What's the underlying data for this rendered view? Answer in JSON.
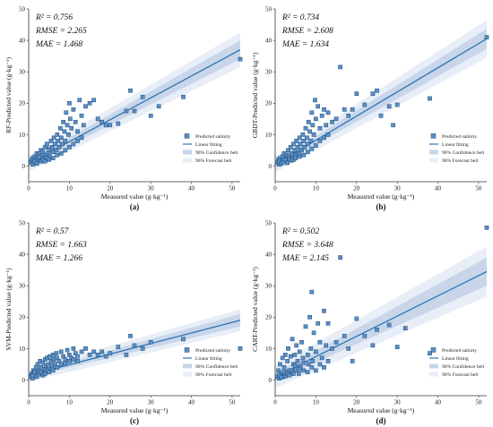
{
  "chart_data": [
    {
      "type": "scatter",
      "panel_label": "(a)",
      "xlabel": "Measured value (g·kg⁻¹)",
      "ylabel": "RF-Predicted value (g·kg⁻¹)",
      "xlim": [
        0,
        52
      ],
      "ylim": [
        -5,
        50
      ],
      "xticks": [
        0,
        10,
        20,
        30,
        40,
        50
      ],
      "yticks": [
        0,
        10,
        20,
        30,
        40,
        50
      ],
      "stats": [
        "R² = 0.756",
        "RMSE = 2.265",
        "MAE = 1.468"
      ],
      "fit": {
        "x": [
          0,
          52
        ],
        "y": [
          0.8,
          37.0
        ]
      },
      "confidence_halfwidth": [
        0.9,
        3.0
      ],
      "forecast_halfwidth": [
        2.5,
        5.5
      ],
      "legend": [
        "Predicted salinity",
        "Linear fitting",
        "90% Confidence belt",
        "90% Forecast belt"
      ],
      "points": [
        [
          0.5,
          1.2
        ],
        [
          0.8,
          2.0
        ],
        [
          1.0,
          2.5
        ],
        [
          1.2,
          1.0
        ],
        [
          1.5,
          3.0
        ],
        [
          1.8,
          2.2
        ],
        [
          2.0,
          4.0
        ],
        [
          2.2,
          1.8
        ],
        [
          2.5,
          3.5
        ],
        [
          2.8,
          2.0
        ],
        [
          3.0,
          5.0
        ],
        [
          3.2,
          3.0
        ],
        [
          3.5,
          4.5
        ],
        [
          3.8,
          2.5
        ],
        [
          4.0,
          6.0
        ],
        [
          4.2,
          3.5
        ],
        [
          4.5,
          7.0
        ],
        [
          4.8,
          4.0
        ],
        [
          5.0,
          5.5
        ],
        [
          5.2,
          3.0
        ],
        [
          5.5,
          8.0
        ],
        [
          5.8,
          6.0
        ],
        [
          6.0,
          4.5
        ],
        [
          6.2,
          9.0
        ],
        [
          6.5,
          7.0
        ],
        [
          6.8,
          5.0
        ],
        [
          7.0,
          10.0
        ],
        [
          7.2,
          8.0
        ],
        [
          7.5,
          6.0
        ],
        [
          7.8,
          12.0
        ],
        [
          8.0,
          9.0
        ],
        [
          8.2,
          7.0
        ],
        [
          8.5,
          14.0
        ],
        [
          8.8,
          11.0
        ],
        [
          9.0,
          8.0
        ],
        [
          9.2,
          17.0
        ],
        [
          9.5,
          13.0
        ],
        [
          9.8,
          10.0
        ],
        [
          10.0,
          20.0
        ],
        [
          10.2,
          15.0
        ],
        [
          10.5,
          12.0
        ],
        [
          11.0,
          18.0
        ],
        [
          11.5,
          14.0
        ],
        [
          12.0,
          11.0
        ],
        [
          12.5,
          21.0
        ],
        [
          13.0,
          16.0
        ],
        [
          13.5,
          13.0
        ],
        [
          14.0,
          19.0
        ],
        [
          15.0,
          20.0
        ],
        [
          16.0,
          21.0
        ],
        [
          17.0,
          15.0
        ],
        [
          18.0,
          14.0
        ],
        [
          19.0,
          13.0
        ],
        [
          20.0,
          13.0
        ],
        [
          22.0,
          13.5
        ],
        [
          24.0,
          17.5
        ],
        [
          25.0,
          24.0
        ],
        [
          26.0,
          17.5
        ],
        [
          28.0,
          22.0
        ],
        [
          30.0,
          16.0
        ],
        [
          32.0,
          19.0
        ],
        [
          38.0,
          22.0
        ],
        [
          52.0,
          34.0
        ],
        [
          1.0,
          0.5
        ],
        [
          1.5,
          1.5
        ],
        [
          2.0,
          0.8
        ],
        [
          2.5,
          2.8
        ],
        [
          3.0,
          1.5
        ],
        [
          3.5,
          2.0
        ],
        [
          4.0,
          1.5
        ],
        [
          4.5,
          2.5
        ],
        [
          5.0,
          2.0
        ],
        [
          6.0,
          2.5
        ],
        [
          7.0,
          3.5
        ],
        [
          8.0,
          4.0
        ],
        [
          9.0,
          5.0
        ],
        [
          10.0,
          6.0
        ],
        [
          11.0,
          7.0
        ],
        [
          12.0,
          8.0
        ],
        [
          13.0,
          9.0
        ]
      ]
    },
    {
      "type": "scatter",
      "panel_label": "(b)",
      "xlabel": "Measured value (g·kg⁻¹)",
      "ylabel": "GBDT-Predicted value (g·kg⁻¹)",
      "xlim": [
        0,
        52
      ],
      "ylim": [
        -5,
        50
      ],
      "xticks": [
        0,
        10,
        20,
        30,
        40,
        50
      ],
      "yticks": [
        0,
        10,
        20,
        30,
        40,
        50
      ],
      "stats": [
        "R² = 0.734",
        "RMSE = 2.608",
        "MAE = 1.634"
      ],
      "fit": {
        "x": [
          0,
          52
        ],
        "y": [
          0.5,
          40.5
        ]
      },
      "confidence_halfwidth": [
        0.9,
        3.2
      ],
      "forecast_halfwidth": [
        2.5,
        6.0
      ],
      "legend": [
        "Predicted salinity",
        "Linear fitting",
        "90% Confidence belt",
        "90% Forecast belt"
      ],
      "points": [
        [
          0.5,
          1.0
        ],
        [
          0.8,
          2.0
        ],
        [
          1.0,
          0.5
        ],
        [
          1.2,
          2.5
        ],
        [
          1.5,
          1.5
        ],
        [
          1.8,
          3.0
        ],
        [
          2.0,
          2.0
        ],
        [
          2.2,
          4.0
        ],
        [
          2.5,
          1.5
        ],
        [
          2.8,
          3.5
        ],
        [
          3.0,
          2.5
        ],
        [
          3.2,
          5.0
        ],
        [
          3.5,
          3.0
        ],
        [
          3.8,
          6.0
        ],
        [
          4.0,
          4.0
        ],
        [
          4.2,
          2.5
        ],
        [
          4.5,
          7.0
        ],
        [
          4.8,
          5.0
        ],
        [
          5.0,
          3.5
        ],
        [
          5.2,
          8.0
        ],
        [
          5.5,
          6.0
        ],
        [
          5.8,
          4.0
        ],
        [
          6.0,
          9.0
        ],
        [
          6.2,
          7.0
        ],
        [
          6.5,
          5.0
        ],
        [
          6.8,
          10.0
        ],
        [
          7.0,
          8.0
        ],
        [
          7.2,
          6.0
        ],
        [
          7.5,
          12.0
        ],
        [
          7.8,
          9.0
        ],
        [
          8.0,
          7.0
        ],
        [
          8.2,
          14.0
        ],
        [
          8.5,
          11.0
        ],
        [
          8.8,
          8.0
        ],
        [
          9.0,
          17.0
        ],
        [
          9.2,
          13.0
        ],
        [
          9.5,
          10.0
        ],
        [
          9.8,
          21.0
        ],
        [
          10.0,
          15.0
        ],
        [
          10.5,
          19.0
        ],
        [
          11.0,
          12.0
        ],
        [
          11.5,
          16.0
        ],
        [
          12.0,
          18.0
        ],
        [
          12.5,
          13.0
        ],
        [
          13.0,
          17.0
        ],
        [
          14.0,
          14.0
        ],
        [
          15.0,
          15.0
        ],
        [
          16.0,
          31.5
        ],
        [
          17.0,
          18.0
        ],
        [
          18.0,
          16.0
        ],
        [
          19.0,
          18.0
        ],
        [
          20.0,
          23.0
        ],
        [
          22.0,
          19.5
        ],
        [
          24.0,
          23.0
        ],
        [
          25.0,
          24.0
        ],
        [
          26.0,
          16.0
        ],
        [
          28.0,
          19.0
        ],
        [
          29.0,
          13.0
        ],
        [
          30.0,
          19.5
        ],
        [
          38.0,
          21.5
        ],
        [
          52.0,
          41.0
        ],
        [
          1.0,
          1.5
        ],
        [
          1.5,
          0.8
        ],
        [
          2.0,
          1.2
        ],
        [
          2.5,
          2.0
        ],
        [
          3.0,
          1.0
        ],
        [
          3.5,
          2.2
        ],
        [
          4.0,
          1.8
        ],
        [
          4.5,
          2.0
        ],
        [
          5.0,
          2.5
        ],
        [
          6.0,
          3.0
        ],
        [
          7.0,
          3.5
        ],
        [
          8.0,
          4.5
        ],
        [
          9.0,
          5.5
        ],
        [
          10.0,
          6.5
        ],
        [
          11.0,
          8.0
        ],
        [
          12.0,
          9.0
        ],
        [
          13.0,
          10.0
        ]
      ]
    },
    {
      "type": "scatter",
      "panel_label": "(c)",
      "xlabel": "Measured value (g·kg⁻¹)",
      "ylabel": "SVM-Predicted value (g·kg⁻¹)",
      "xlim": [
        0,
        52
      ],
      "ylim": [
        -5,
        50
      ],
      "xticks": [
        0,
        10,
        20,
        30,
        40,
        50
      ],
      "yticks": [
        0,
        10,
        20,
        30,
        40,
        50
      ],
      "stats": [
        "R² = 0.57",
        "RMSE = 1.663",
        "MAE = 1.266"
      ],
      "fit": {
        "x": [
          0,
          52
        ],
        "y": [
          1.5,
          19.0
        ]
      },
      "confidence_halfwidth": [
        0.6,
        2.0
      ],
      "forecast_halfwidth": [
        2.0,
        3.5
      ],
      "legend": [
        "Predicted salinity",
        "Linear fitting",
        "90% Confidence belt",
        "90% Forecast belt"
      ],
      "points": [
        [
          0.5,
          1.0
        ],
        [
          0.8,
          2.0
        ],
        [
          1.0,
          0.5
        ],
        [
          1.2,
          3.0
        ],
        [
          1.5,
          1.5
        ],
        [
          1.8,
          4.0
        ],
        [
          2.0,
          2.5
        ],
        [
          2.2,
          5.0
        ],
        [
          2.5,
          3.0
        ],
        [
          2.8,
          6.0
        ],
        [
          3.0,
          4.0
        ],
        [
          3.2,
          2.0
        ],
        [
          3.5,
          5.5
        ],
        [
          3.8,
          3.5
        ],
        [
          4.0,
          6.5
        ],
        [
          4.2,
          4.5
        ],
        [
          4.5,
          7.0
        ],
        [
          4.8,
          5.0
        ],
        [
          5.0,
          3.5
        ],
        [
          5.2,
          7.5
        ],
        [
          5.5,
          6.0
        ],
        [
          5.8,
          4.5
        ],
        [
          6.0,
          8.0
        ],
        [
          6.2,
          6.5
        ],
        [
          6.5,
          5.0
        ],
        [
          6.8,
          8.5
        ],
        [
          7.0,
          7.0
        ],
        [
          7.5,
          6.0
        ],
        [
          8.0,
          9.0
        ],
        [
          8.5,
          7.5
        ],
        [
          9.0,
          6.5
        ],
        [
          9.5,
          9.5
        ],
        [
          10.0,
          8.0
        ],
        [
          10.5,
          7.0
        ],
        [
          11.0,
          10.0
        ],
        [
          11.5,
          8.5
        ],
        [
          12.0,
          7.5
        ],
        [
          13.0,
          9.0
        ],
        [
          14.0,
          10.0
        ],
        [
          15.0,
          8.0
        ],
        [
          16.0,
          9.0
        ],
        [
          17.0,
          8.0
        ],
        [
          18.0,
          9.0
        ],
        [
          19.0,
          7.5
        ],
        [
          20.0,
          8.5
        ],
        [
          22.0,
          10.5
        ],
        [
          24.0,
          8.0
        ],
        [
          25.0,
          14.0
        ],
        [
          26.0,
          11.0
        ],
        [
          28.0,
          10.0
        ],
        [
          30.0,
          12.0
        ],
        [
          38.0,
          13.0
        ],
        [
          52.0,
          10.0
        ],
        [
          1.0,
          1.5
        ],
        [
          1.5,
          2.5
        ],
        [
          2.0,
          1.0
        ],
        [
          2.5,
          1.8
        ],
        [
          3.0,
          2.5
        ],
        [
          3.5,
          1.5
        ],
        [
          4.0,
          2.0
        ],
        [
          4.5,
          3.0
        ],
        [
          5.0,
          2.5
        ],
        [
          6.0,
          3.0
        ],
        [
          7.0,
          4.0
        ],
        [
          8.0,
          5.0
        ],
        [
          9.0,
          5.5
        ],
        [
          10.0,
          6.0
        ],
        [
          11.0,
          6.5
        ],
        [
          12.0,
          6.0
        ]
      ]
    },
    {
      "type": "scatter",
      "panel_label": "(d)",
      "xlabel": "Measured value (g·kg⁻¹)",
      "ylabel": "CART-Predicted value (g·kg⁻¹)",
      "xlim": [
        0,
        52
      ],
      "ylim": [
        -5,
        50
      ],
      "xticks": [
        0,
        10,
        20,
        30,
        40,
        50
      ],
      "yticks": [
        0,
        10,
        20,
        30,
        40,
        50
      ],
      "stats": [
        "R² = 0.502",
        "RMSE = 3.648",
        "MAE = 2.145"
      ],
      "fit": {
        "x": [
          0,
          52
        ],
        "y": [
          1.0,
          34.5
        ]
      },
      "confidence_halfwidth": [
        1.2,
        4.5
      ],
      "forecast_halfwidth": [
        3.5,
        8.0
      ],
      "legend": [
        "Predicted salinity",
        "Linear fitting",
        "90% Confidence belt",
        "90% Forecast belt"
      ],
      "points": [
        [
          0.5,
          1.0
        ],
        [
          0.8,
          3.0
        ],
        [
          1.0,
          0.5
        ],
        [
          1.2,
          5.0
        ],
        [
          1.5,
          2.0
        ],
        [
          1.8,
          7.0
        ],
        [
          2.0,
          1.0
        ],
        [
          2.2,
          4.0
        ],
        [
          2.5,
          8.0
        ],
        [
          2.8,
          2.5
        ],
        [
          3.0,
          6.0
        ],
        [
          3.2,
          10.0
        ],
        [
          3.5,
          3.0
        ],
        [
          3.8,
          7.5
        ],
        [
          4.0,
          2.0
        ],
        [
          4.2,
          13.0
        ],
        [
          4.5,
          5.0
        ],
        [
          4.8,
          8.0
        ],
        [
          5.0,
          3.0
        ],
        [
          5.2,
          11.0
        ],
        [
          5.5,
          6.0
        ],
        [
          5.8,
          2.0
        ],
        [
          6.0,
          9.0
        ],
        [
          6.2,
          4.0
        ],
        [
          6.5,
          12.0
        ],
        [
          6.8,
          7.0
        ],
        [
          7.0,
          3.0
        ],
        [
          7.5,
          17.0
        ],
        [
          8.0,
          8.0
        ],
        [
          8.2,
          5.0
        ],
        [
          8.5,
          20.0
        ],
        [
          8.8,
          10.0
        ],
        [
          9.0,
          28.0
        ],
        [
          9.2,
          6.0
        ],
        [
          9.5,
          15.0
        ],
        [
          10.0,
          9.0
        ],
        [
          10.5,
          18.0
        ],
        [
          11.0,
          12.0
        ],
        [
          11.5,
          7.0
        ],
        [
          12.0,
          22.0
        ],
        [
          12.5,
          11.0
        ],
        [
          13.0,
          18.0
        ],
        [
          14.0,
          10.0
        ],
        [
          15.0,
          12.0
        ],
        [
          16.0,
          39.0
        ],
        [
          17.0,
          14.0
        ],
        [
          18.0,
          10.0
        ],
        [
          19.0,
          6.0
        ],
        [
          20.0,
          19.5
        ],
        [
          22.0,
          14.0
        ],
        [
          24.0,
          11.0
        ],
        [
          25.0,
          16.0
        ],
        [
          28.0,
          17.5
        ],
        [
          30.0,
          10.5
        ],
        [
          32.0,
          16.5
        ],
        [
          38.0,
          8.5
        ],
        [
          52.0,
          48.5
        ],
        [
          1.0,
          1.5
        ],
        [
          1.5,
          0.8
        ],
        [
          2.0,
          2.5
        ],
        [
          2.5,
          1.2
        ],
        [
          3.0,
          2.0
        ],
        [
          3.5,
          1.5
        ],
        [
          4.0,
          3.0
        ],
        [
          4.5,
          2.0
        ],
        [
          5.0,
          4.5
        ],
        [
          6.0,
          3.5
        ],
        [
          7.0,
          5.5
        ],
        [
          8.0,
          2.5
        ],
        [
          9.0,
          4.0
        ],
        [
          10.0,
          3.0
        ],
        [
          11.0,
          5.0
        ],
        [
          12.0,
          4.0
        ],
        [
          13.0,
          6.0
        ]
      ]
    }
  ]
}
